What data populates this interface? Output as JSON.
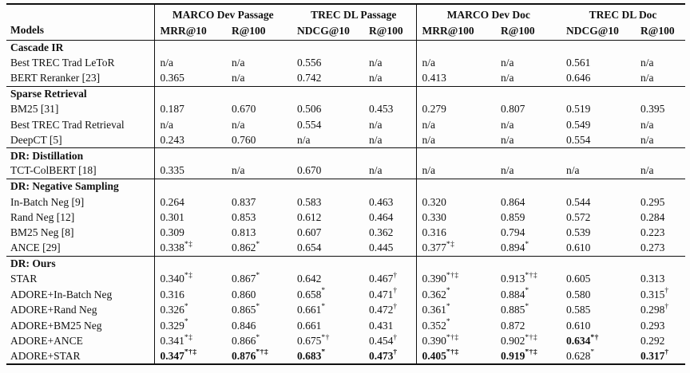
{
  "colors": {
    "background": "#fdfdfd",
    "text": "#121212",
    "rule": "#101010"
  },
  "table": {
    "models_header": "Models",
    "groups": [
      {
        "label": "MARCO Dev Passage",
        "cols": [
          "MRR@10",
          "R@100"
        ]
      },
      {
        "label": "TREC DL Passage",
        "cols": [
          "NDCG@10",
          "R@100"
        ]
      },
      {
        "label": "MARCO Dev Doc",
        "cols": [
          "MRR@100",
          "R@100"
        ]
      },
      {
        "label": "TREC DL Doc",
        "cols": [
          "NDCG@10",
          "R@100"
        ]
      }
    ],
    "sections": [
      {
        "title": "Cascade IR",
        "rows": [
          {
            "model": "Best TREC Trad LeToR",
            "cells": [
              "n/a",
              "n/a",
              "0.556",
              "n/a",
              "n/a",
              "n/a",
              "0.561",
              "n/a"
            ]
          },
          {
            "model": "BERT Reranker [23]",
            "cells": [
              "0.365",
              "n/a",
              "0.742",
              "n/a",
              "0.413",
              "n/a",
              "0.646",
              "n/a"
            ]
          }
        ]
      },
      {
        "title": "Sparse Retrieval",
        "rows": [
          {
            "model": "BM25 [31]",
            "cells": [
              "0.187",
              "0.670",
              "0.506",
              "0.453",
              "0.279",
              "0.807",
              "0.519",
              "0.395"
            ]
          },
          {
            "model": "Best TREC Trad Retrieval",
            "cells": [
              "n/a",
              "n/a",
              "0.554",
              "n/a",
              "n/a",
              "n/a",
              "0.549",
              "n/a"
            ]
          },
          {
            "model": "DeepCT [5]",
            "cells": [
              "0.243",
              "0.760",
              "n/a",
              "n/a",
              "n/a",
              "n/a",
              "0.554",
              "n/a"
            ]
          }
        ]
      },
      {
        "title": "DR: Distillation",
        "rows": [
          {
            "model": "TCT-ColBERT [18]",
            "cells": [
              "0.335",
              "n/a",
              "0.670",
              "n/a",
              "n/a",
              "n/a",
              "n/a",
              "n/a"
            ]
          }
        ]
      },
      {
        "title": "DR: Negative Sampling",
        "rows": [
          {
            "model": "In-Batch Neg [9]",
            "cells": [
              "0.264",
              "0.837",
              "0.583",
              "0.463",
              "0.320",
              "0.864",
              "0.544",
              "0.295"
            ]
          },
          {
            "model": "Rand Neg [12]",
            "cells": [
              "0.301",
              "0.853",
              "0.612",
              "0.464",
              "0.330",
              "0.859",
              "0.572",
              "0.284"
            ]
          },
          {
            "model": "BM25 Neg [8]",
            "cells": [
              "0.309",
              "0.813",
              "0.607",
              "0.362",
              "0.316",
              "0.794",
              "0.539",
              "0.223"
            ]
          },
          {
            "model": "ANCE [29]",
            "cells": [
              {
                "v": "0.338",
                "s": "*‡"
              },
              {
                "v": "0.862",
                "s": "*"
              },
              "0.654",
              "0.445",
              {
                "v": "0.377",
                "s": "*‡"
              },
              {
                "v": "0.894",
                "s": "*"
              },
              "0.610",
              "0.273"
            ]
          }
        ]
      },
      {
        "title": "DR: Ours",
        "rows": [
          {
            "model": "STAR",
            "cells": [
              {
                "v": "0.340",
                "s": "*‡"
              },
              {
                "v": "0.867",
                "s": "*"
              },
              "0.642",
              {
                "v": "0.467",
                "s": "†"
              },
              {
                "v": "0.390",
                "s": "*†‡"
              },
              {
                "v": "0.913",
                "s": "*†‡"
              },
              "0.605",
              "0.313"
            ]
          },
          {
            "model": "ADORE+In-Batch Neg",
            "cells": [
              "0.316",
              "0.860",
              {
                "v": "0.658",
                "s": "*"
              },
              {
                "v": "0.471",
                "s": "†"
              },
              {
                "v": "0.362",
                "s": "*"
              },
              {
                "v": "0.884",
                "s": "*"
              },
              "0.580",
              {
                "v": "0.315",
                "s": "†"
              }
            ]
          },
          {
            "model": "ADORE+Rand Neg",
            "cells": [
              {
                "v": "0.326",
                "s": "*"
              },
              {
                "v": "0.865",
                "s": "*"
              },
              {
                "v": "0.661",
                "s": "*"
              },
              {
                "v": "0.472",
                "s": "†"
              },
              {
                "v": "0.361",
                "s": "*"
              },
              {
                "v": "0.885",
                "s": "*"
              },
              "0.585",
              {
                "v": "0.298",
                "s": "†"
              }
            ]
          },
          {
            "model": "ADORE+BM25 Neg",
            "cells": [
              {
                "v": "0.329",
                "s": "*"
              },
              "0.846",
              "0.661",
              "0.431",
              {
                "v": "0.352",
                "s": "*"
              },
              "0.872",
              "0.610",
              "0.293"
            ]
          },
          {
            "model": "ADORE+ANCE",
            "cells": [
              {
                "v": "0.341",
                "s": "*‡"
              },
              {
                "v": "0.866",
                "s": "*"
              },
              {
                "v": "0.675",
                "s": "*†"
              },
              {
                "v": "0.454",
                "s": "†"
              },
              {
                "v": "0.390",
                "s": "*†‡"
              },
              {
                "v": "0.902",
                "s": "*†‡"
              },
              {
                "v": "0.634",
                "s": "*†",
                "b": true
              },
              "0.292"
            ]
          },
          {
            "model": "ADORE+STAR",
            "cells": [
              {
                "v": "0.347",
                "s": "*†‡",
                "b": true
              },
              {
                "v": "0.876",
                "s": "*†‡",
                "b": true
              },
              {
                "v": "0.683",
                "s": "*",
                "b": true
              },
              {
                "v": "0.473",
                "s": "†",
                "b": true
              },
              {
                "v": "0.405",
                "s": "*†‡",
                "b": true
              },
              {
                "v": "0.919",
                "s": "*†‡",
                "b": true
              },
              {
                "v": "0.628",
                "s": "*"
              },
              {
                "v": "0.317",
                "s": "†",
                "b": true
              }
            ]
          }
        ]
      }
    ]
  }
}
